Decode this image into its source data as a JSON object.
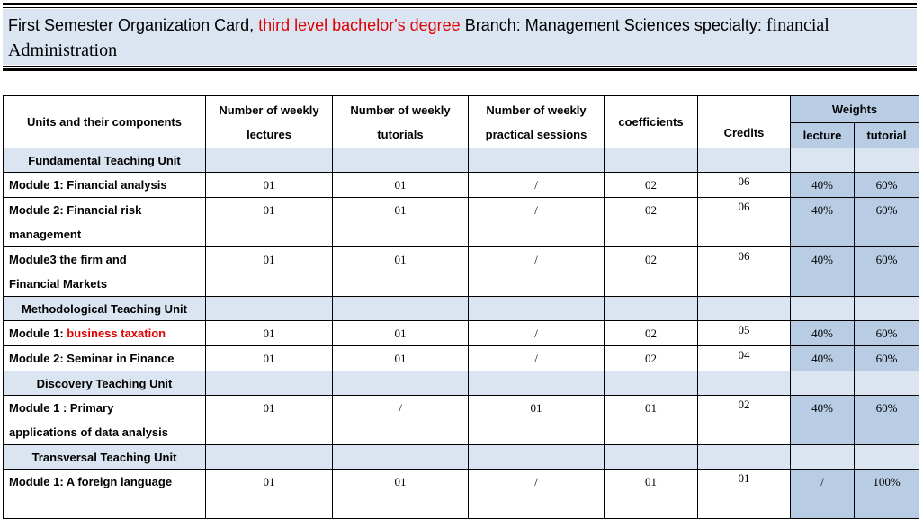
{
  "header": {
    "part1": "First Semester Organization Card, ",
    "highlight": "third level bachelor's degree",
    "part2": " Branch: Management Sciences specialty: ",
    "part3": "financial",
    "line2": "Administration"
  },
  "columns": {
    "units": "Units and their components",
    "lectures_l1": "Number of weekly",
    "lectures_l2": "lectures",
    "tutorials_l1": "Number of weekly",
    "tutorials_l2": "tutorials",
    "practical_l1": "Number of weekly",
    "practical_l2": "practical sessions",
    "coefficients": "coefficients",
    "credits": "Credits",
    "weights": "Weights",
    "weight_lecture": "lecture",
    "weight_tutorial": "tutorial"
  },
  "units": [
    {
      "name": "Fundamental Teaching Unit",
      "modules": [
        {
          "prefix": "Module 1: ",
          "name": "Financial analysis",
          "name_red": false,
          "lectures": "01",
          "tutorials": "01",
          "practical": "/",
          "coefficient": "02",
          "credits": "06",
          "w_lecture": "40%",
          "w_tutorial": "60%",
          "tall": false
        },
        {
          "prefix": "Module 2: ",
          "name": "Financial risk",
          "name2": "management",
          "name_red": false,
          "lectures": "01",
          "tutorials": "01",
          "practical": "/",
          "coefficient": "02",
          "credits": "06",
          "w_lecture": "40%",
          "w_tutorial": "60%",
          "tall": true
        },
        {
          "prefix": "Module3 ",
          "name": "the firm and",
          "name2": "Financial Markets",
          "name_red": false,
          "lectures": "01",
          "tutorials": "01",
          "practical": "/",
          "coefficient": "02",
          "credits": "06",
          "w_lecture": "40%",
          "w_tutorial": "60%",
          "tall": true
        }
      ]
    },
    {
      "name": "Methodological Teaching Unit",
      "modules": [
        {
          "prefix": "Module 1: ",
          "name": "business taxation",
          "name_red": true,
          "lectures": "01",
          "tutorials": "01",
          "practical": "/",
          "coefficient": "02",
          "credits": "05",
          "w_lecture": "40%",
          "w_tutorial": "60%",
          "tall": false
        },
        {
          "prefix": "Module 2: ",
          "name": "Seminar in Finance",
          "name_red": false,
          "lectures": "01",
          "tutorials": "01",
          "practical": "/",
          "coefficient": "02",
          "credits": "04",
          "w_lecture": "40%",
          "w_tutorial": "60%",
          "tall": false
        }
      ]
    },
    {
      "name": "Discovery Teaching Unit",
      "modules": [
        {
          "prefix": "Module 1 : ",
          "name": "Primary",
          "name2": "applications of data analysis",
          "name_red": false,
          "lectures": "01",
          "tutorials": "/",
          "practical": "01",
          "coefficient": "01",
          "credits": "02",
          "w_lecture": "40%",
          "w_tutorial": "60%",
          "tall": true
        }
      ]
    },
    {
      "name": "Transversal Teaching Unit",
      "modules": [
        {
          "prefix": "Module 1: ",
          "name": "A foreign language",
          "name_red": false,
          "lectures": "01",
          "tutorials": "01",
          "practical": "/",
          "coefficient": "01",
          "credits": "01",
          "w_lecture": "/",
          "w_tutorial": "100%",
          "tall": true
        }
      ]
    }
  ]
}
